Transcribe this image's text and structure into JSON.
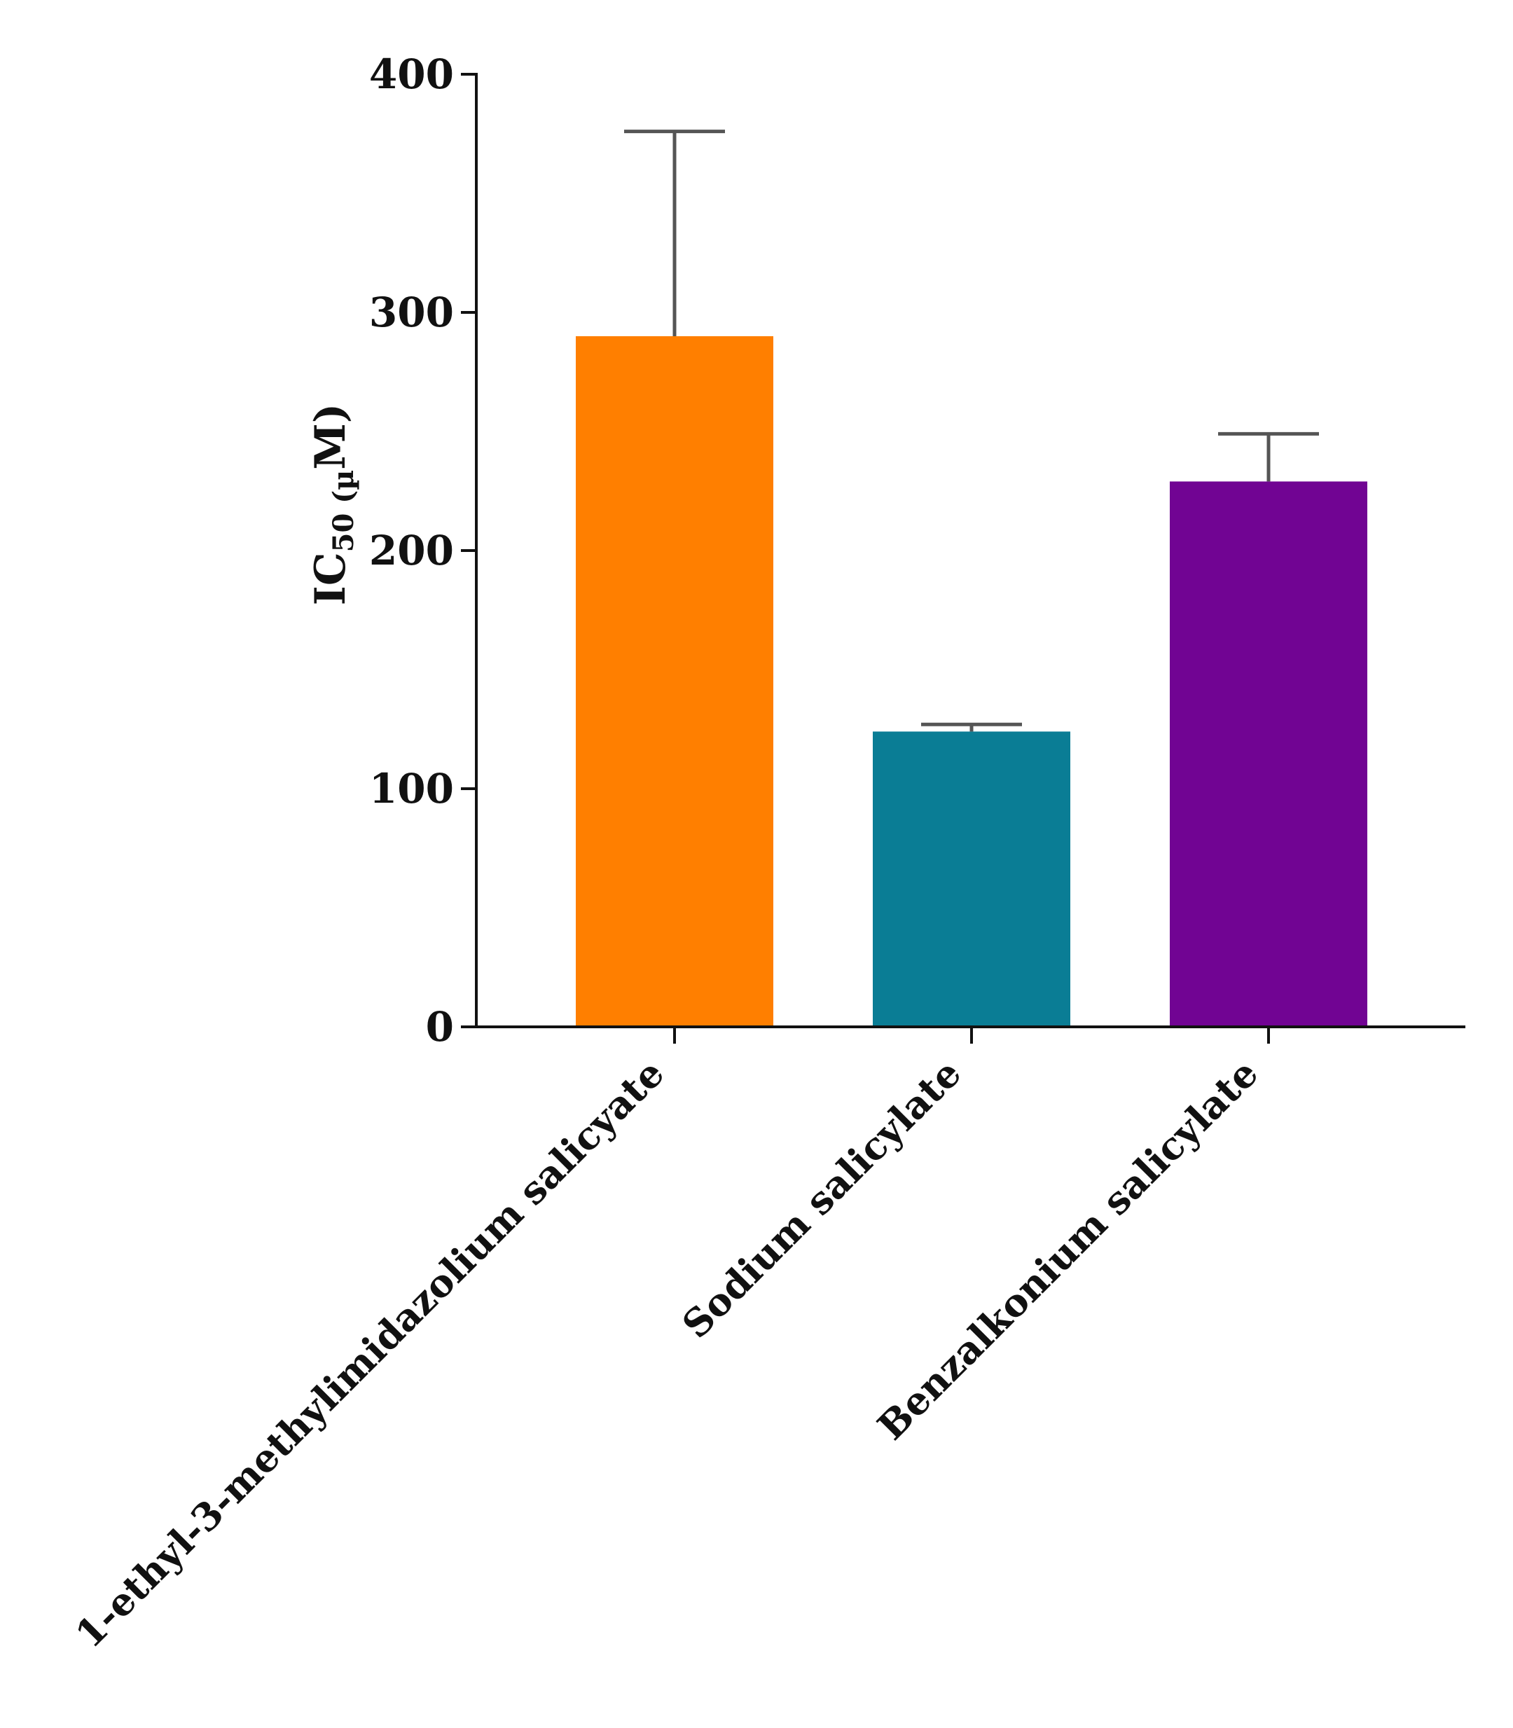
{
  "chart_data": {
    "type": "bar",
    "categories": [
      "1-ethyl-3-methylimidazolium salicyate",
      "Sodium salicylate",
      "Benzalkonium salicylate"
    ],
    "values": [
      290,
      124,
      229
    ],
    "error_upper": [
      376,
      127,
      249
    ],
    "colors": [
      "#FF7F00",
      "#0A7D95",
      "#710493"
    ],
    "ylabel": {
      "main": "IC",
      "subscript": "50 (µ",
      "tail": "M)"
    },
    "ylim": [
      0,
      400
    ],
    "yticks": [
      "0",
      "100",
      "200",
      "300",
      "400"
    ],
    "grid": false,
    "legend": false
  }
}
